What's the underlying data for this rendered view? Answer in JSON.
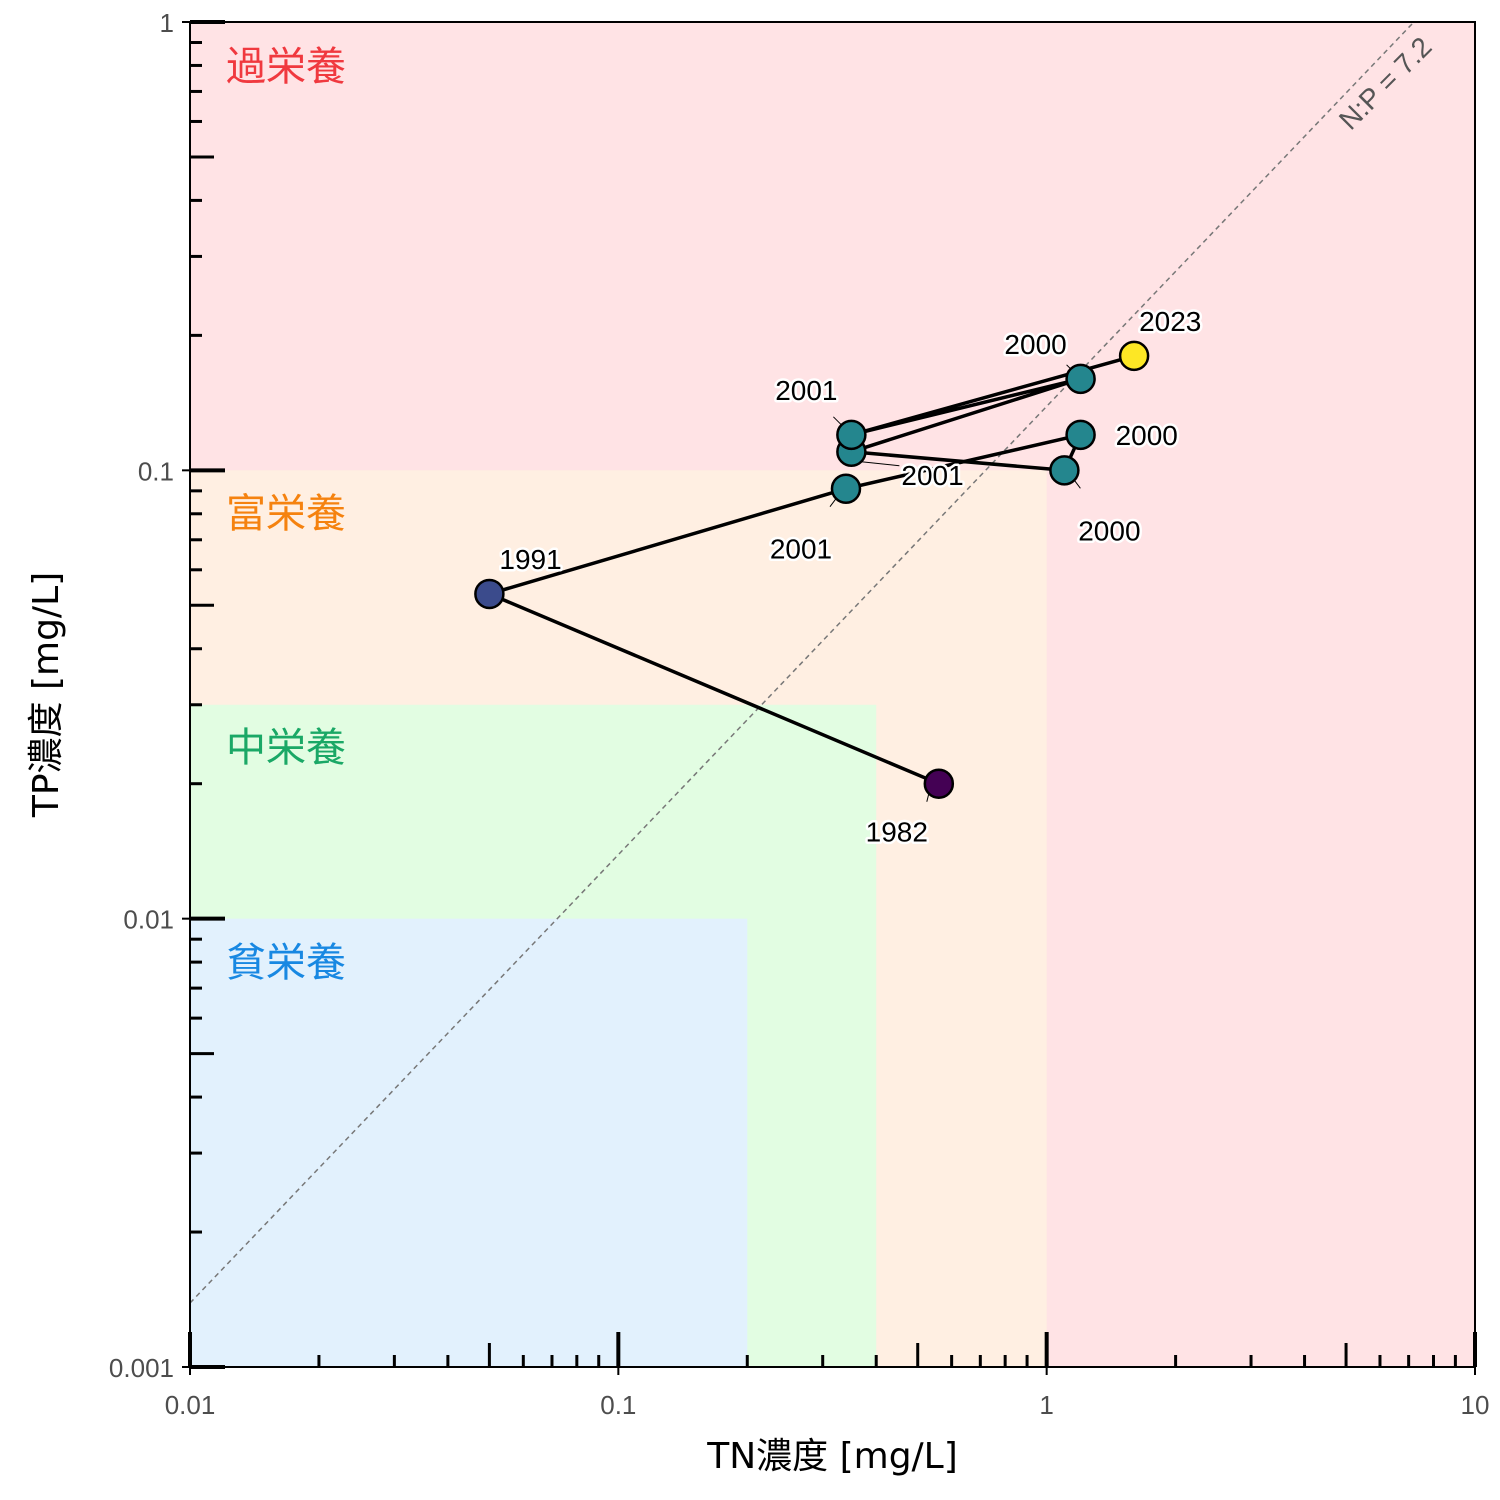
{
  "chart_data": {
    "type": "scatter",
    "xlabel": "TN濃度 [mg/L]",
    "ylabel": "TP濃度 [mg/L]",
    "x_scale": "log",
    "y_scale": "log",
    "xlim": [
      0.01,
      10
    ],
    "ylim": [
      0.001,
      1
    ],
    "x_tick_labels": [
      "0.01",
      "0.1",
      "1",
      "10"
    ],
    "y_tick_labels": [
      "0.001",
      "0.01",
      "0.1",
      "1"
    ],
    "zones": [
      {
        "name": "過栄養",
        "tn_max": 10,
        "tp_max": 1,
        "fill": "#ffe3e5",
        "text_color": "#f0393f"
      },
      {
        "name": "富栄養",
        "tn_max": 1,
        "tp_max": 0.1,
        "fill": "#ffefe2",
        "text_color": "#f5820f"
      },
      {
        "name": "中栄養",
        "tn_max": 0.4,
        "tp_max": 0.03,
        "fill": "#e2fde2",
        "text_color": "#1aa866"
      },
      {
        "name": "貧栄養",
        "tn_max": 0.2,
        "tp_max": 0.01,
        "fill": "#e2f1fd",
        "text_color": "#1888e2"
      }
    ],
    "ratio_line": {
      "label": "N:P = 7.2",
      "ratio": 7.2,
      "color": "#777777"
    },
    "points": [
      {
        "year": "1982",
        "tn": 0.56,
        "tp": 0.02,
        "color": "#440154"
      },
      {
        "year": "1991",
        "tn": 0.05,
        "tp": 0.053,
        "color": "#3b4b8c"
      },
      {
        "year": "2001",
        "tn": 0.34,
        "tp": 0.091,
        "color": "#24868e"
      },
      {
        "year": "2000",
        "tn": 1.2,
        "tp": 0.12,
        "color": "#24868e"
      },
      {
        "year": "2000",
        "tn": 1.1,
        "tp": 0.1,
        "color": "#24868e"
      },
      {
        "year": "2001",
        "tn": 0.35,
        "tp": 0.11,
        "color": "#24868e"
      },
      {
        "year": "2000",
        "tn": 1.2,
        "tp": 0.16,
        "color": "#24868e"
      },
      {
        "year": "2001",
        "tn": 0.35,
        "tp": 0.12,
        "color": "#24868e"
      },
      {
        "year": "2023",
        "tn": 1.6,
        "tp": 0.18,
        "color": "#fde725"
      }
    ],
    "grid": false,
    "legend": "none"
  }
}
